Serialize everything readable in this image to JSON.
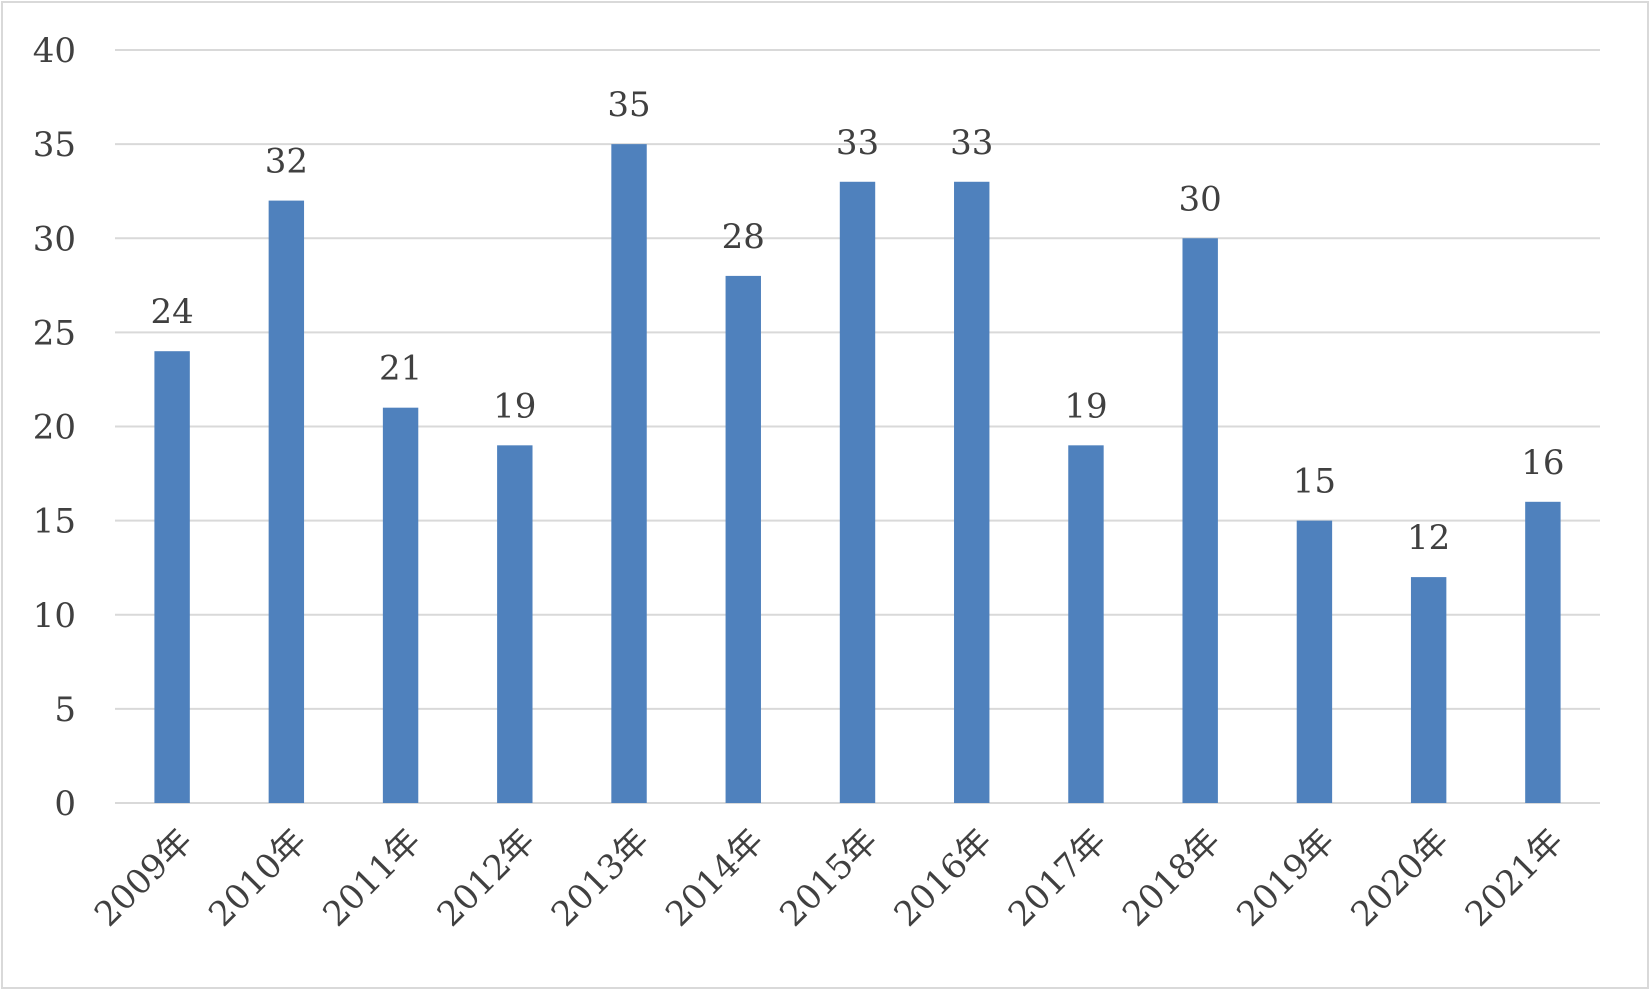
{
  "chart_data": {
    "type": "bar",
    "title": "",
    "xlabel": "",
    "ylabel": "",
    "categories": [
      "2009年",
      "2010年",
      "2011年",
      "2012年",
      "2013年",
      "2014年",
      "2015年",
      "2016年",
      "2017年",
      "2018年",
      "2019年",
      "2020年",
      "2021年"
    ],
    "values": [
      24,
      32,
      21,
      19,
      35,
      28,
      33,
      33,
      19,
      30,
      15,
      12,
      16
    ],
    "ylim": [
      0,
      40
    ],
    "yticks": [
      0,
      5,
      10,
      15,
      20,
      25,
      30,
      35,
      40
    ],
    "grid": true,
    "legend": "none",
    "data_labels": true,
    "colors": {
      "bar": "#4f81bd",
      "grid": "#d9d9d9",
      "text": "#404040",
      "frame": "#d9d9d9"
    }
  }
}
